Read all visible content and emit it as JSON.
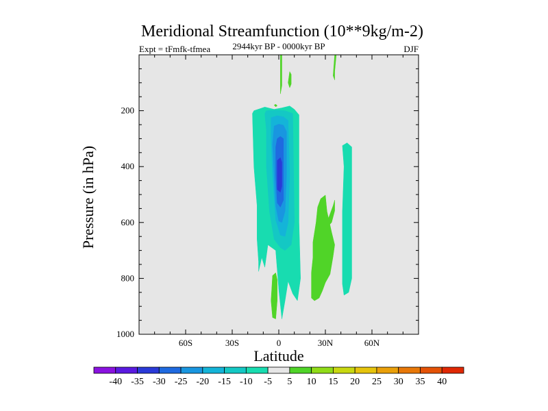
{
  "chart_data": {
    "type": "filled-contour",
    "title": "Meridional Streamfunction (10**9kg/m-2)",
    "subtitle": "2944kyr BP - 0000kyr BP",
    "left_label": "Expt = tFmfk-tfmea",
    "right_label": "DJF",
    "xlabel": "Latitude",
    "ylabel": "Pressure (in hPa)",
    "xlim": [
      -90,
      90
    ],
    "ylim": [
      1000,
      0
    ],
    "x_ticks": [
      {
        "value": -60,
        "label": "60S"
      },
      {
        "value": -30,
        "label": "30S"
      },
      {
        "value": 0,
        "label": "0"
      },
      {
        "value": 30,
        "label": "30N"
      },
      {
        "value": 60,
        "label": "60N"
      }
    ],
    "y_ticks": [
      {
        "value": 200,
        "label": "200"
      },
      {
        "value": 400,
        "label": "400"
      },
      {
        "value": 600,
        "label": "600"
      },
      {
        "value": 800,
        "label": "800"
      },
      {
        "value": 1000,
        "label": "1000"
      }
    ],
    "background_color": "#e6e6e6",
    "colorbar": {
      "levels": [
        "-40",
        "-35",
        "-30",
        "-25",
        "-20",
        "-15",
        "-10",
        "-5",
        "5",
        "10",
        "15",
        "20",
        "25",
        "30",
        "35",
        "40"
      ],
      "colors": [
        "#8a12e0",
        "#5a1ae0",
        "#2a3ad8",
        "#1f6ae0",
        "#1996e0",
        "#14b4d8",
        "#14c8c4",
        "#18dcb0",
        "#e6e6e6",
        "#50d428",
        "#90dc18",
        "#c8d810",
        "#e6c40c",
        "#eaa00a",
        "#e87808",
        "#e45206",
        "#e02804"
      ]
    },
    "regions": [
      {
        "name": "southern-cell-outer",
        "color": "#18dcb0",
        "points": [
          [
            -16,
            200
          ],
          [
            -9,
            187
          ],
          [
            -3,
            195
          ],
          [
            2,
            190
          ],
          [
            7,
            183
          ],
          [
            10,
            195
          ],
          [
            13,
            215
          ],
          [
            13,
            600
          ],
          [
            14,
            800
          ],
          [
            12,
            880
          ],
          [
            9,
            855
          ],
          [
            6,
            810
          ],
          [
            4,
            880
          ],
          [
            2,
            945
          ],
          [
            0,
            840
          ],
          [
            -2,
            700
          ],
          [
            -7,
            680
          ],
          [
            -9,
            760
          ],
          [
            -11,
            725
          ],
          [
            -13,
            775
          ],
          [
            -13,
            740
          ],
          [
            -14,
            660
          ],
          [
            -14,
            540
          ],
          [
            -16,
            400
          ],
          [
            -17,
            210
          ]
        ]
      },
      {
        "name": "southern-cell-l10",
        "color": "#14c8c4",
        "points": [
          [
            -8,
            200
          ],
          [
            -2,
            198
          ],
          [
            4,
            200
          ],
          [
            9,
            210
          ],
          [
            10,
            600
          ],
          [
            8,
            680
          ],
          [
            4,
            700
          ],
          [
            1,
            690
          ],
          [
            -3,
            660
          ],
          [
            -6,
            560
          ],
          [
            -8,
            400
          ],
          [
            -8,
            270
          ],
          [
            -9,
            210
          ]
        ]
      },
      {
        "name": "southern-cell-l15",
        "color": "#14b4d8",
        "points": [
          [
            -5,
            225
          ],
          [
            -1,
            218
          ],
          [
            3,
            222
          ],
          [
            6,
            235
          ],
          [
            7,
            430
          ],
          [
            6,
            600
          ],
          [
            4,
            650
          ],
          [
            1,
            645
          ],
          [
            -2,
            590
          ],
          [
            -4,
            430
          ],
          [
            -5,
            300
          ]
        ]
      },
      {
        "name": "southern-cell-l20",
        "color": "#1996e0",
        "points": [
          [
            -3,
            255
          ],
          [
            0,
            248
          ],
          [
            3,
            252
          ],
          [
            5,
            275
          ],
          [
            5,
            430
          ],
          [
            4,
            560
          ],
          [
            2,
            600
          ],
          [
            0,
            595
          ],
          [
            -2,
            540
          ],
          [
            -3,
            430
          ],
          [
            -4,
            320
          ]
        ]
      },
      {
        "name": "southern-cell-l25",
        "color": "#1f6ae0",
        "points": [
          [
            -1,
            300
          ],
          [
            1,
            292
          ],
          [
            3,
            300
          ],
          [
            3,
            520
          ],
          [
            1,
            545
          ],
          [
            -1,
            530
          ],
          [
            -2,
            430
          ],
          [
            -2,
            330
          ]
        ]
      },
      {
        "name": "southern-cell-core",
        "color": "#2a3ad8",
        "points": [
          [
            -1,
            378
          ],
          [
            1,
            368
          ],
          [
            2,
            385
          ],
          [
            2,
            470
          ],
          [
            1,
            492
          ],
          [
            -1,
            482
          ],
          [
            -1,
            420
          ]
        ]
      },
      {
        "name": "northern-band",
        "color": "#18dcb0",
        "points": [
          [
            41,
            325
          ],
          [
            44,
            315
          ],
          [
            47,
            330
          ],
          [
            47,
            800
          ],
          [
            45,
            850
          ],
          [
            42,
            860
          ],
          [
            41,
            820
          ],
          [
            41,
            560
          ],
          [
            42,
            400
          ]
        ]
      },
      {
        "name": "positive-cell-mid",
        "color": "#50d428",
        "points": [
          [
            25,
            545
          ],
          [
            27,
            515
          ],
          [
            30,
            502
          ],
          [
            31,
            560
          ],
          [
            34,
            635
          ],
          [
            36,
            680
          ],
          [
            35,
            720
          ],
          [
            33,
            785
          ],
          [
            30,
            815
          ],
          [
            28,
            845
          ],
          [
            26,
            870
          ],
          [
            23,
            880
          ],
          [
            21,
            870
          ],
          [
            21,
            820
          ],
          [
            21,
            780
          ],
          [
            22,
            725
          ],
          [
            22,
            670
          ],
          [
            24,
            600
          ]
        ]
      },
      {
        "name": "positive-cell-arm",
        "color": "#50d428",
        "points": [
          [
            32,
            585
          ],
          [
            35,
            540
          ],
          [
            36,
            520
          ],
          [
            36,
            558
          ],
          [
            34,
            600
          ],
          [
            32,
            612
          ]
        ]
      },
      {
        "name": "positive-cell-low",
        "color": "#50d428",
        "points": [
          [
            -4,
            790
          ],
          [
            -2,
            780
          ],
          [
            -1,
            805
          ],
          [
            -1,
            880
          ],
          [
            -2,
            945
          ],
          [
            -4,
            940
          ],
          [
            -5,
            880
          ]
        ]
      },
      {
        "name": "positive-cell-top-a",
        "color": "#50d428",
        "points": [
          [
            1,
            0
          ],
          [
            2,
            0
          ],
          [
            2,
            50
          ],
          [
            2,
            110
          ],
          [
            1,
            140
          ],
          [
            1,
            60
          ]
        ]
      },
      {
        "name": "positive-cell-top-b",
        "color": "#50d428",
        "points": [
          [
            36,
            0
          ],
          [
            37,
            0
          ],
          [
            36,
            60
          ],
          [
            36,
            90
          ],
          [
            35,
            75
          ]
        ]
      },
      {
        "name": "positive-cell-top-c",
        "color": "#50d428",
        "points": [
          [
            7,
            60
          ],
          [
            8,
            70
          ],
          [
            8,
            105
          ],
          [
            7,
            118
          ],
          [
            6,
            100
          ]
        ]
      },
      {
        "name": "positive-cell-top-d",
        "color": "#50d428",
        "points": [
          [
            -3,
            180
          ],
          [
            -2,
            177
          ],
          [
            -1,
            182
          ],
          [
            -2,
            186
          ]
        ]
      }
    ]
  }
}
